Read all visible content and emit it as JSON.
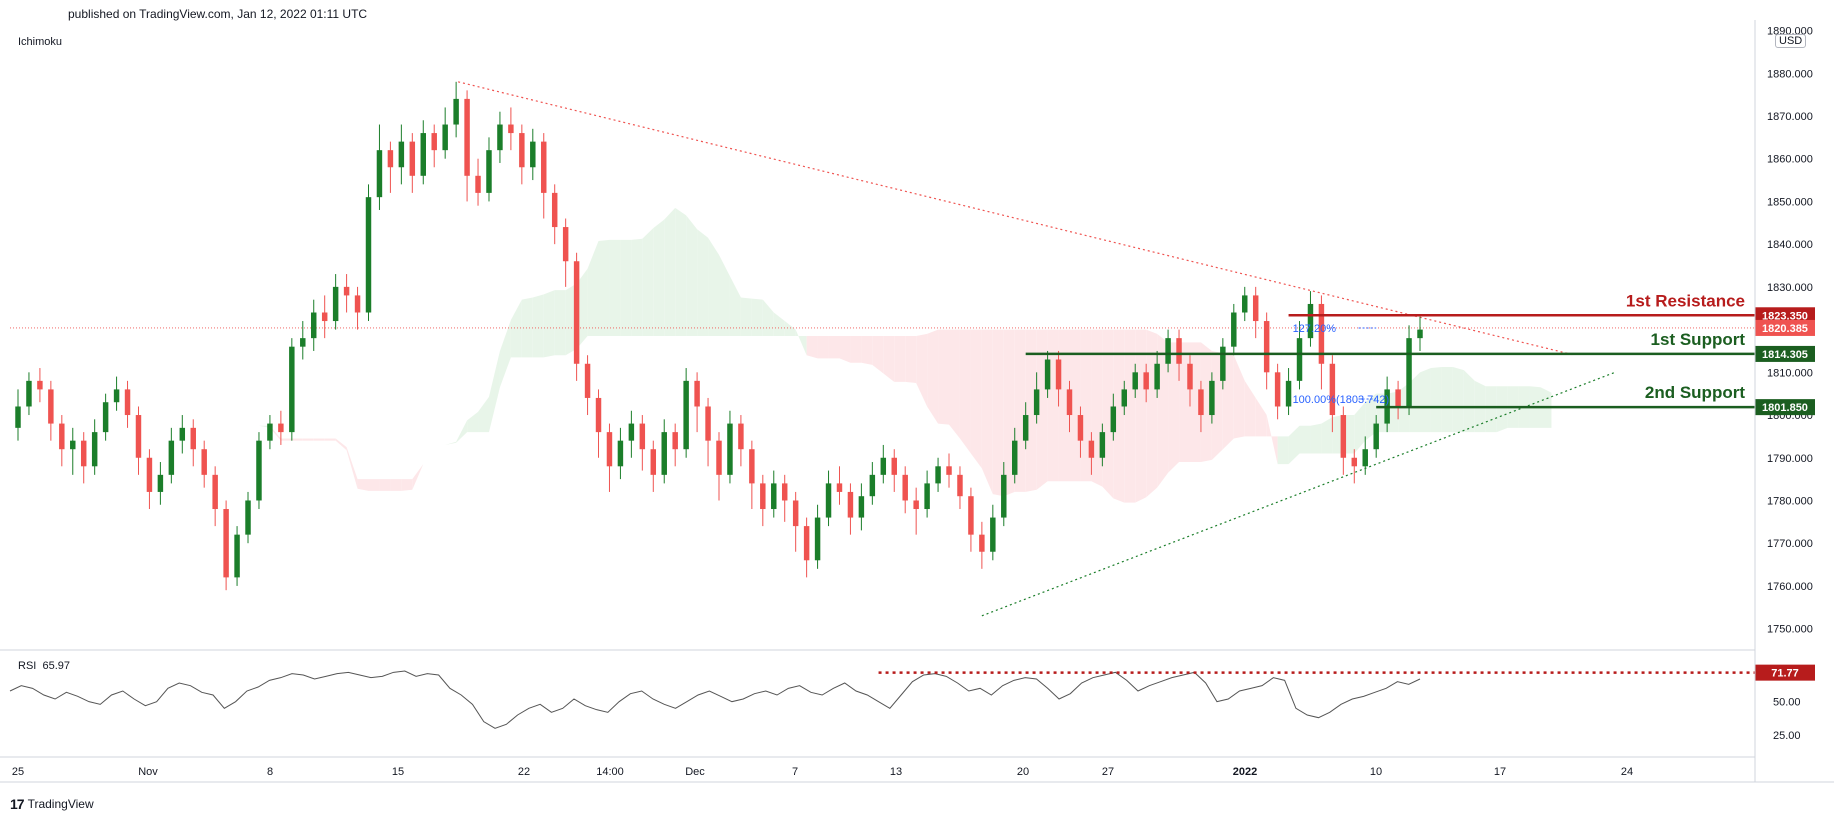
{
  "header": {
    "published": "published on TradingView.com, Jan 12, 2022 01:11 UTC"
  },
  "footer": {
    "brand": "TradingView"
  },
  "indicators": {
    "main": "Ichimoku",
    "rsi_label": "RSI",
    "rsi_value": "65.97"
  },
  "currency": "USD",
  "colors": {
    "up": "#26a69a",
    "upDark": "#1b7e2a",
    "down": "#ef5350",
    "resistance": "#b71c1c",
    "support": "#1b5e20",
    "fib": "#2962ff",
    "cloudUp": "#e8f5e9",
    "cloudDown": "#fde7e9"
  },
  "chart_data": {
    "type": "candlestick",
    "symbol_currency": "USD",
    "y_ticks": [
      "1750.000",
      "1760.000",
      "1770.000",
      "1780.000",
      "1790.000",
      "1800.000",
      "1810.000",
      "1820.000",
      "1830.000",
      "1840.000",
      "1850.000",
      "1860.000",
      "1870.000",
      "1880.000",
      "1890.000"
    ],
    "x_ticks": [
      "25",
      "Nov",
      "8",
      "15",
      "22",
      "14:00",
      "Dec",
      "7",
      "13",
      "20",
      "27",
      "2022",
      "10",
      "17",
      "24"
    ],
    "ylim": [
      1745,
      1892
    ],
    "price_labels": [
      {
        "text": "1823.350",
        "value": 1823.35,
        "color": "#b71c1c"
      },
      {
        "text": "1820.385",
        "value": 1820.385,
        "color": "#ef5350"
      },
      {
        "text": "1814.305",
        "value": 1814.305,
        "color": "#1b5e20"
      },
      {
        "text": "1801.850",
        "value": 1801.85,
        "color": "#1b5e20"
      }
    ],
    "levels": [
      {
        "name": "1st Resistance",
        "value": 1823.35,
        "color": "#b71c1c"
      },
      {
        "name": "1st Support",
        "value": 1814.305,
        "color": "#1b5e20"
      },
      {
        "name": "2nd Support",
        "value": 1801.85,
        "color": "#1b5e20"
      }
    ],
    "fib_labels": [
      "127.20%",
      "100.00%(1803.742)"
    ],
    "rsi": {
      "value_label": "71.77",
      "level": 71.77,
      "ticks": [
        "50.00",
        "25.00"
      ],
      "ylim": [
        10,
        85
      ],
      "values": [
        58,
        62,
        60,
        55,
        52,
        57,
        54,
        50,
        48,
        55,
        58,
        52,
        47,
        50,
        60,
        64,
        62,
        57,
        55,
        45,
        50,
        58,
        61,
        66,
        68,
        71,
        70,
        67,
        69,
        71,
        72,
        70,
        68,
        69,
        72,
        73,
        69,
        71,
        70,
        60,
        55,
        48,
        35,
        30,
        33,
        40,
        45,
        48,
        42,
        45,
        52,
        47,
        44,
        42,
        50,
        56,
        58,
        52,
        48,
        45,
        50,
        55,
        58,
        54,
        50,
        52,
        56,
        58,
        55,
        60,
        62,
        57,
        55,
        60,
        64,
        58,
        55,
        50,
        45,
        55,
        65,
        70,
        71,
        69,
        64,
        58,
        60,
        55,
        62,
        66,
        68,
        67,
        60,
        52,
        56,
        64,
        68,
        70,
        72,
        66,
        58,
        62,
        65,
        68,
        70,
        72,
        64,
        50,
        52,
        58,
        60,
        62,
        68,
        66,
        45,
        40,
        38,
        42,
        48,
        52,
        54,
        57,
        60,
        65,
        63,
        67
      ]
    },
    "candles": [
      [
        1797,
        1802,
        1806,
        1794
      ],
      [
        1802,
        1808,
        1810,
        1800
      ],
      [
        1808,
        1806,
        1811,
        1803
      ],
      [
        1806,
        1798,
        1808,
        1794
      ],
      [
        1798,
        1792,
        1800,
        1788
      ],
      [
        1792,
        1794,
        1797,
        1786
      ],
      [
        1794,
        1788,
        1796,
        1784
      ],
      [
        1788,
        1796,
        1799,
        1786
      ],
      [
        1796,
        1803,
        1805,
        1794
      ],
      [
        1803,
        1806,
        1809,
        1801
      ],
      [
        1806,
        1800,
        1808,
        1797
      ],
      [
        1800,
        1790,
        1802,
        1786
      ],
      [
        1790,
        1782,
        1792,
        1778
      ],
      [
        1782,
        1786,
        1789,
        1779
      ],
      [
        1786,
        1794,
        1797,
        1784
      ],
      [
        1794,
        1797,
        1800,
        1791
      ],
      [
        1797,
        1792,
        1799,
        1788
      ],
      [
        1792,
        1786,
        1794,
        1783
      ],
      [
        1786,
        1778,
        1788,
        1774
      ],
      [
        1778,
        1762,
        1780,
        1759
      ],
      [
        1762,
        1772,
        1774,
        1760
      ],
      [
        1772,
        1780,
        1782,
        1770
      ],
      [
        1780,
        1794,
        1796,
        1778
      ],
      [
        1794,
        1798,
        1800,
        1792
      ],
      [
        1798,
        1796,
        1801,
        1793
      ],
      [
        1796,
        1816,
        1818,
        1794
      ],
      [
        1816,
        1818,
        1822,
        1813
      ],
      [
        1818,
        1824,
        1827,
        1815
      ],
      [
        1824,
        1822,
        1828,
        1818
      ],
      [
        1822,
        1830,
        1833,
        1820
      ],
      [
        1830,
        1828,
        1833,
        1824
      ],
      [
        1828,
        1824,
        1830,
        1820
      ],
      [
        1824,
        1851,
        1854,
        1822
      ],
      [
        1851,
        1862,
        1868,
        1848
      ],
      [
        1862,
        1858,
        1864,
        1852
      ],
      [
        1858,
        1864,
        1868,
        1854
      ],
      [
        1864,
        1856,
        1866,
        1852
      ],
      [
        1856,
        1866,
        1869,
        1854
      ],
      [
        1866,
        1862,
        1868,
        1858
      ],
      [
        1862,
        1868,
        1872,
        1860
      ],
      [
        1868,
        1874,
        1878,
        1865
      ],
      [
        1874,
        1856,
        1876,
        1850
      ],
      [
        1856,
        1852,
        1860,
        1849
      ],
      [
        1852,
        1862,
        1865,
        1850
      ],
      [
        1862,
        1868,
        1871,
        1859
      ],
      [
        1868,
        1866,
        1872,
        1862
      ],
      [
        1866,
        1858,
        1868,
        1854
      ],
      [
        1858,
        1864,
        1867,
        1855
      ],
      [
        1864,
        1852,
        1866,
        1846
      ],
      [
        1852,
        1844,
        1854,
        1840
      ],
      [
        1844,
        1836,
        1846,
        1830
      ],
      [
        1836,
        1812,
        1838,
        1808
      ],
      [
        1812,
        1804,
        1814,
        1800
      ],
      [
        1804,
        1796,
        1806,
        1790
      ],
      [
        1796,
        1788,
        1798,
        1782
      ],
      [
        1788,
        1794,
        1797,
        1785
      ],
      [
        1794,
        1798,
        1801,
        1790
      ],
      [
        1798,
        1792,
        1800,
        1787
      ],
      [
        1792,
        1786,
        1794,
        1782
      ],
      [
        1786,
        1796,
        1799,
        1784
      ],
      [
        1796,
        1792,
        1798,
        1788
      ],
      [
        1792,
        1808,
        1811,
        1790
      ],
      [
        1808,
        1802,
        1810,
        1796
      ],
      [
        1802,
        1794,
        1804,
        1788
      ],
      [
        1794,
        1786,
        1796,
        1780
      ],
      [
        1786,
        1798,
        1801,
        1784
      ],
      [
        1798,
        1792,
        1800,
        1788
      ],
      [
        1792,
        1784,
        1794,
        1778
      ],
      [
        1784,
        1778,
        1786,
        1774
      ],
      [
        1778,
        1784,
        1787,
        1776
      ],
      [
        1784,
        1780,
        1786,
        1775
      ],
      [
        1780,
        1774,
        1782,
        1768
      ],
      [
        1774,
        1766,
        1776,
        1762
      ],
      [
        1766,
        1776,
        1779,
        1764
      ],
      [
        1776,
        1784,
        1787,
        1774
      ],
      [
        1784,
        1782,
        1788,
        1779
      ],
      [
        1782,
        1776,
        1784,
        1772
      ],
      [
        1776,
        1781,
        1784,
        1773
      ],
      [
        1781,
        1786,
        1789,
        1779
      ],
      [
        1786,
        1790,
        1793,
        1784
      ],
      [
        1790,
        1786,
        1792,
        1782
      ],
      [
        1786,
        1780,
        1788,
        1777
      ],
      [
        1780,
        1778,
        1783,
        1772
      ],
      [
        1778,
        1784,
        1787,
        1776
      ],
      [
        1784,
        1788,
        1790,
        1782
      ],
      [
        1788,
        1786,
        1791,
        1783
      ],
      [
        1786,
        1781,
        1788,
        1778
      ],
      [
        1781,
        1772,
        1783,
        1768
      ],
      [
        1772,
        1768,
        1775,
        1764
      ],
      [
        1768,
        1776,
        1779,
        1766
      ],
      [
        1776,
        1786,
        1789,
        1774
      ],
      [
        1786,
        1794,
        1797,
        1784
      ],
      [
        1794,
        1800,
        1803,
        1792
      ],
      [
        1800,
        1806,
        1810,
        1798
      ],
      [
        1806,
        1813,
        1815,
        1804
      ],
      [
        1813,
        1806,
        1815,
        1802
      ],
      [
        1806,
        1800,
        1808,
        1796
      ],
      [
        1800,
        1794,
        1802,
        1790
      ],
      [
        1794,
        1790,
        1796,
        1786
      ],
      [
        1790,
        1796,
        1798,
        1788
      ],
      [
        1796,
        1802,
        1805,
        1794
      ],
      [
        1802,
        1806,
        1808,
        1800
      ],
      [
        1806,
        1810,
        1812,
        1804
      ],
      [
        1810,
        1806,
        1812,
        1803
      ],
      [
        1806,
        1812,
        1815,
        1804
      ],
      [
        1812,
        1818,
        1820,
        1810
      ],
      [
        1818,
        1812,
        1820,
        1808
      ],
      [
        1812,
        1806,
        1814,
        1802
      ],
      [
        1806,
        1800,
        1808,
        1796
      ],
      [
        1800,
        1808,
        1810,
        1798
      ],
      [
        1808,
        1816,
        1818,
        1806
      ],
      [
        1816,
        1824,
        1826,
        1814
      ],
      [
        1824,
        1828,
        1830,
        1822
      ],
      [
        1828,
        1822,
        1830,
        1818
      ],
      [
        1822,
        1810,
        1824,
        1806
      ],
      [
        1810,
        1802,
        1812,
        1799
      ],
      [
        1802,
        1808,
        1811,
        1800
      ],
      [
        1808,
        1818,
        1822,
        1806
      ],
      [
        1818,
        1826,
        1829,
        1816
      ],
      [
        1826,
        1812,
        1828,
        1806
      ],
      [
        1812,
        1800,
        1814,
        1796
      ],
      [
        1800,
        1790,
        1802,
        1786
      ],
      [
        1790,
        1788,
        1792,
        1784
      ],
      [
        1788,
        1792,
        1795,
        1786
      ],
      [
        1792,
        1798,
        1800,
        1790
      ],
      [
        1798,
        1806,
        1809,
        1796
      ],
      [
        1806,
        1802,
        1808,
        1799
      ],
      [
        1802,
        1818,
        1821,
        1800
      ],
      [
        1818,
        1820,
        1823,
        1815
      ]
    ]
  }
}
